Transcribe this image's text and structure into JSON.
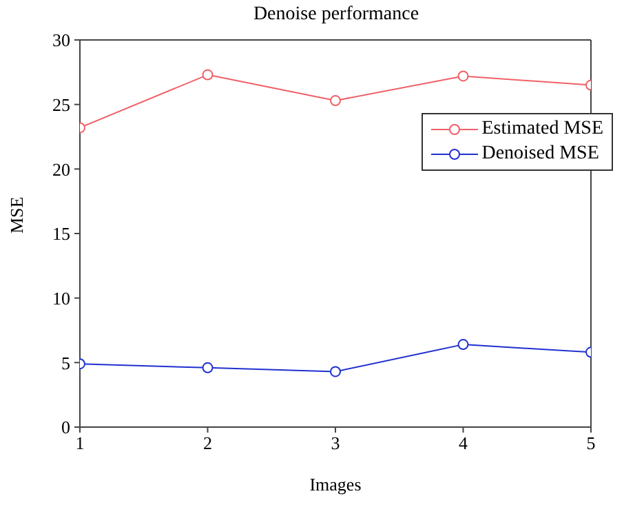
{
  "chart_data": {
    "type": "line",
    "title": "Denoise performance",
    "xlabel": "Images",
    "ylabel": "MSE",
    "x": [
      1,
      2,
      3,
      4,
      5
    ],
    "xlim": [
      1,
      5
    ],
    "xticks": [
      1,
      2,
      3,
      4,
      5
    ],
    "ylim": [
      0,
      30
    ],
    "yticks": [
      0,
      5,
      10,
      15,
      20,
      25,
      30
    ],
    "series": [
      {
        "name": "Estimated MSE",
        "color": "#f06068",
        "values": [
          23.2,
          27.3,
          25.3,
          27.2,
          26.5
        ]
      },
      {
        "name": "Denoised MSE",
        "color": "#2030d0",
        "values": [
          4.9,
          4.6,
          4.3,
          6.4,
          5.8
        ]
      }
    ],
    "marker": "circle",
    "line_style": "solid",
    "grid": false,
    "legend": "top right"
  }
}
